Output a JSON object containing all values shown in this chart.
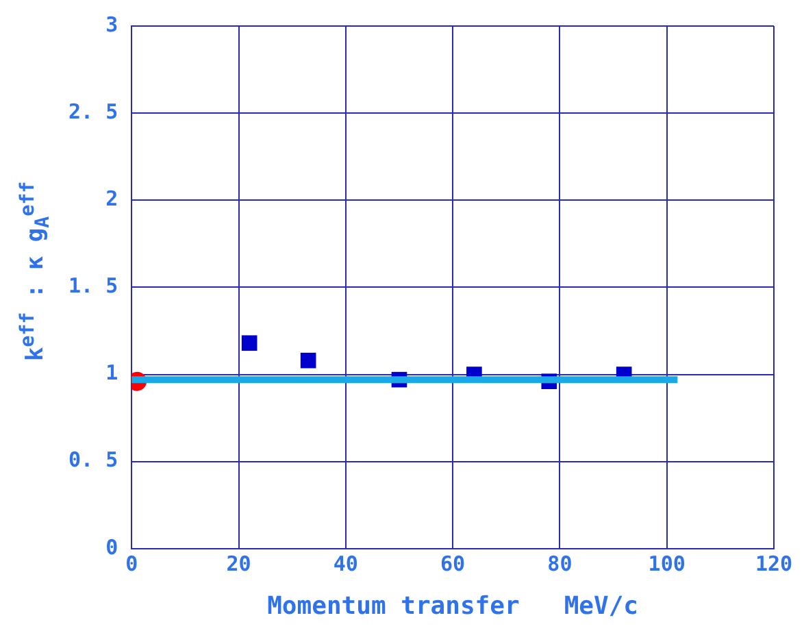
{
  "chart_data": {
    "type": "scatter",
    "xlabel": "Momentum transfer   MeV/c",
    "ylabel": "k$^{eff}$ : κ g$_{A}$$^{eff}$",
    "xlim": [
      0,
      120
    ],
    "xticks": [
      0,
      20,
      40,
      60,
      80,
      100,
      120
    ],
    "ylim": [
      0,
      3
    ],
    "yticks": [
      0,
      0.5,
      1,
      1.5,
      2,
      2.5,
      3
    ],
    "grid": true,
    "legend": false,
    "series": [
      {
        "type": "line",
        "color": "#1aa8e8",
        "marker": "none",
        "x": [
          0,
          102
        ],
        "values": [
          0.97,
          0.97
        ]
      },
      {
        "color": "#0000cc",
        "marker": "square",
        "x": [
          22,
          33,
          50,
          64,
          78,
          92
        ],
        "values": [
          1.18,
          1.08,
          0.97,
          1.0,
          0.96,
          1.0
        ]
      },
      {
        "color": "#ff0000",
        "marker": "circle",
        "x": [
          1
        ],
        "values": [
          0.96
        ]
      }
    ]
  }
}
